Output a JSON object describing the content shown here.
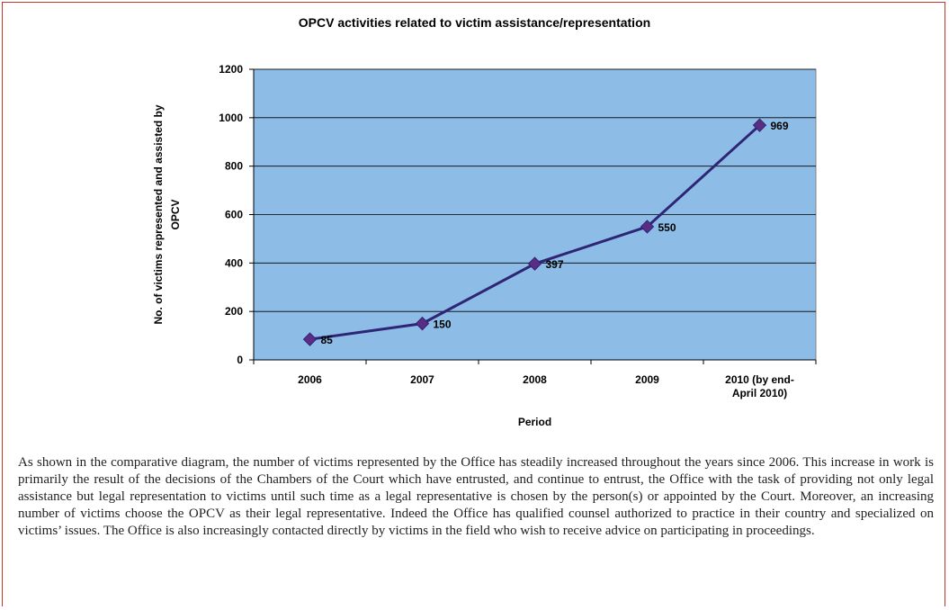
{
  "chart_data": {
    "type": "line",
    "title": "OPCV activities related to victim assistance/representation",
    "xlabel": "Period",
    "ylabel_line1": "No. of victims represented and assisted by",
    "ylabel_line2": "OPCV",
    "categories": [
      [
        "2006"
      ],
      [
        "2007"
      ],
      [
        "2008"
      ],
      [
        "2009"
      ],
      [
        "2010 (by end-",
        "April 2010)"
      ]
    ],
    "values": [
      85,
      150,
      397,
      550,
      969
    ],
    "ylim": [
      0,
      1200
    ],
    "yticks": [
      0,
      200,
      400,
      600,
      800,
      1000,
      1200
    ],
    "grid": true,
    "colors": {
      "plot_bg": "#8dbde6",
      "line": "#2e2577",
      "marker": "#5b2d82",
      "gridline": "#000000"
    }
  },
  "text": {
    "paragraph": "As shown in the comparative diagram, the number of victims represented by the Office has steadily increased throughout the years since 2006. This increase in work is primarily the result of the decisions of the Chambers of the Court which have entrusted, and continue to entrust, the Office with the task of providing not only legal assistance but legal representation to victims until such time as a legal representative is chosen by the person(s) or appointed by the Court. Moreover, an increasing number of victims choose the OPCV as their legal representative. Indeed the Office has qualified counsel authorized to practice in their country and specialized on victims’ issues. The Office is also increasingly contacted directly by victims in the field who wish to receive advice on participating in proceedings."
  }
}
